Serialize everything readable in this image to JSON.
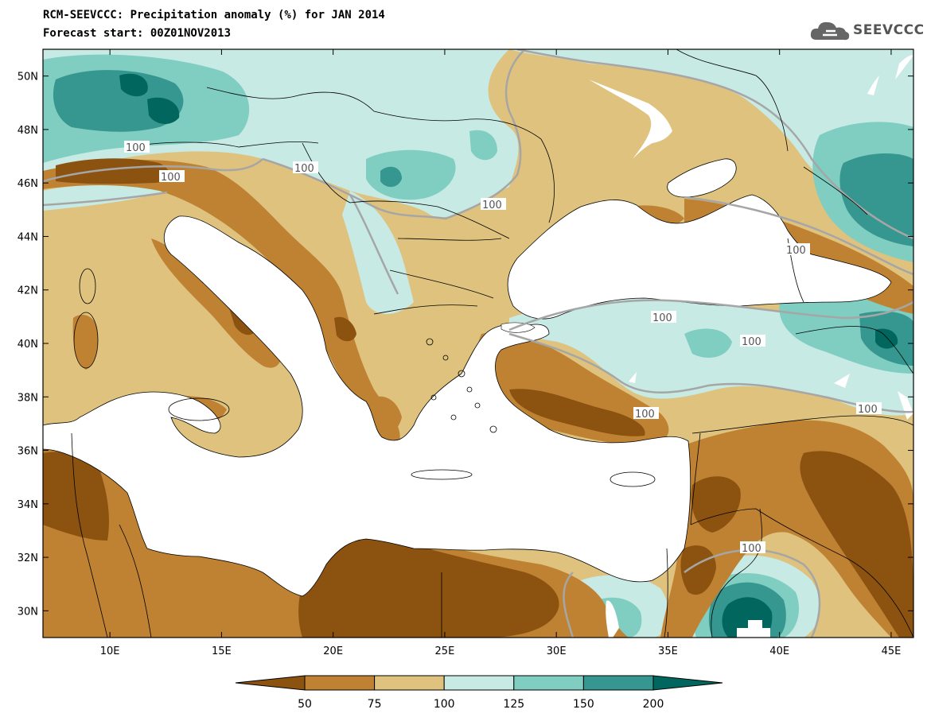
{
  "title_line1": "RCM-SEEVCCC: Precipitation anomaly (%) for JAN 2014",
  "title_line2": "Forecast start: 00Z01NOV2013",
  "logo": {
    "text": "SEEVCCC",
    "icon": "cloud-icon"
  },
  "axes": {
    "lon_range": [
      7,
      46
    ],
    "lat_range": [
      29,
      51
    ],
    "lon_ticks": [
      "10E",
      "15E",
      "20E",
      "25E",
      "30E",
      "35E",
      "40E",
      "45E"
    ],
    "lat_ticks": [
      "30N",
      "32N",
      "34N",
      "36N",
      "38N",
      "40N",
      "42N",
      "44N",
      "46N",
      "48N",
      "50N"
    ]
  },
  "colorbar": {
    "labels": [
      "50",
      "75",
      "100",
      "125",
      "150",
      "200"
    ],
    "colors": [
      "#8C5210",
      "#BF8233",
      "#DFC27D",
      "#C7EAE5",
      "#80CDC1",
      "#35978F",
      "#01665E"
    ]
  },
  "contour_label": "100",
  "colors": {
    "land_default": "#DFC27D",
    "water": "#ffffff",
    "contour": "#A6A6A6"
  }
}
